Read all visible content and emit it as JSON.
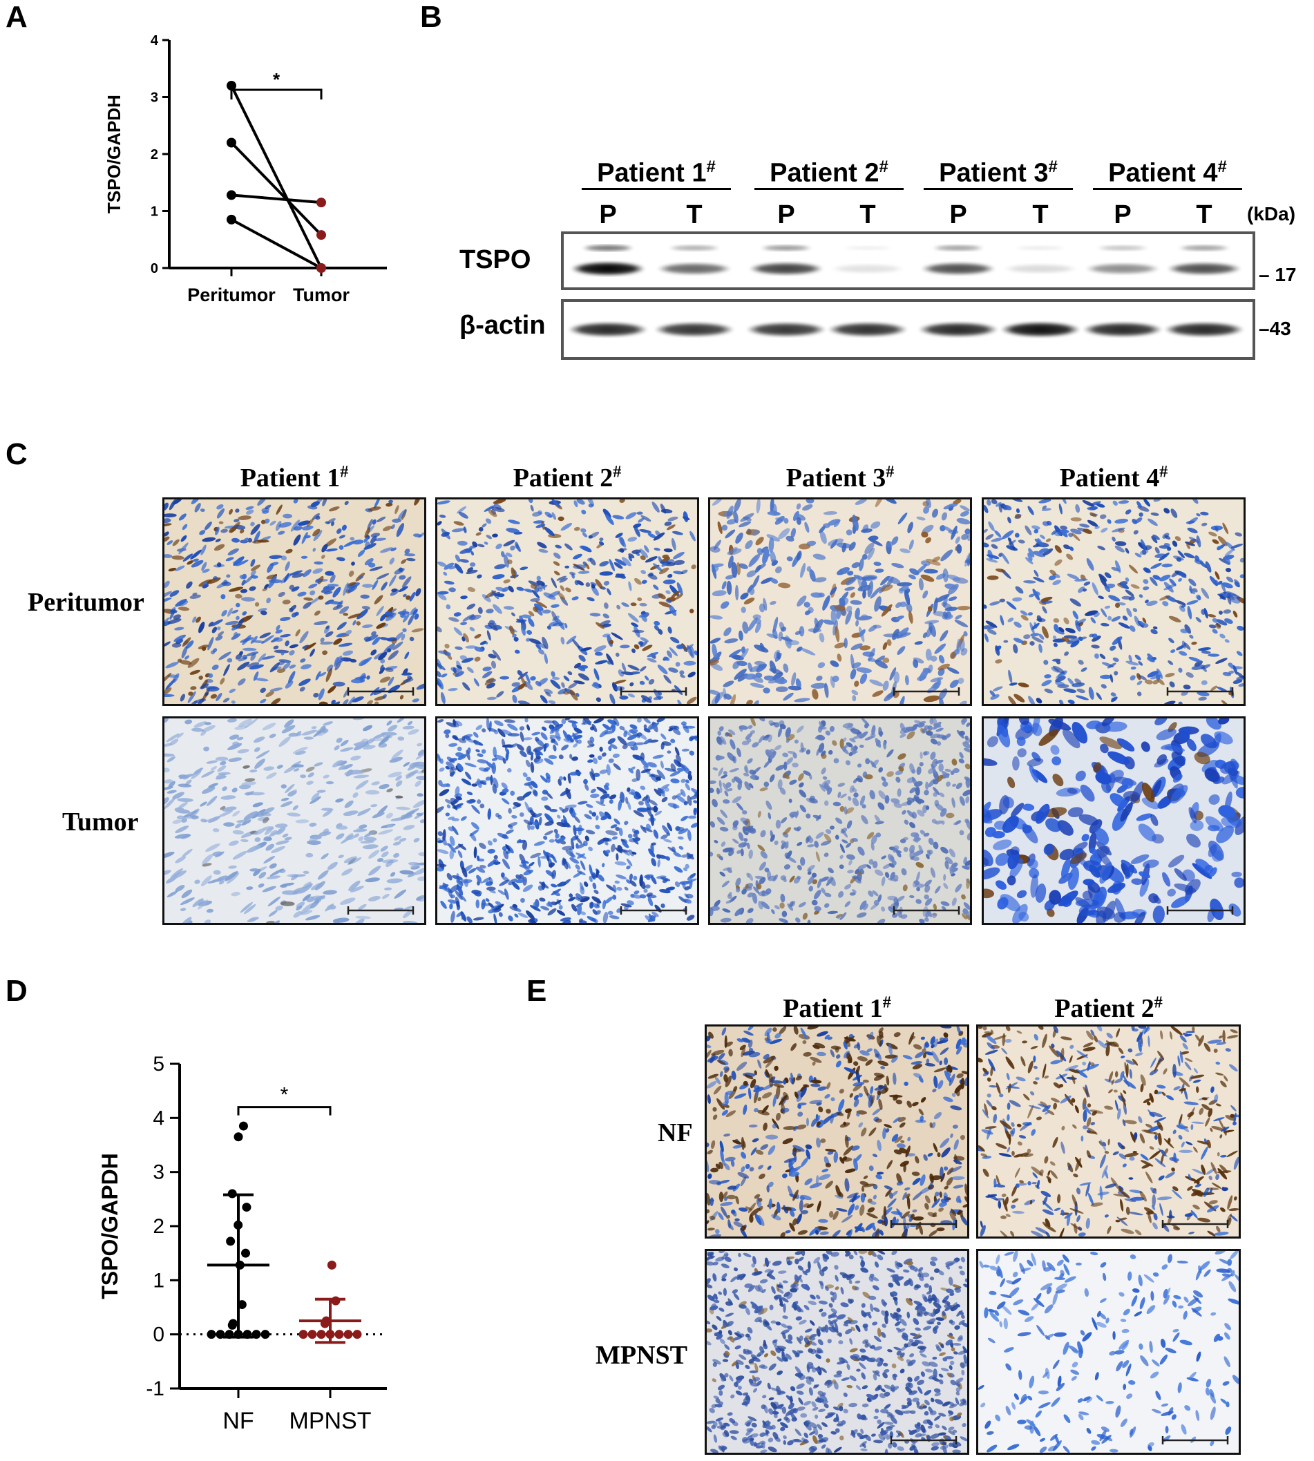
{
  "panels": {
    "A": {
      "letter": "A"
    },
    "B": {
      "letter": "B"
    },
    "C": {
      "letter": "C"
    },
    "D": {
      "letter": "D"
    },
    "E": {
      "letter": "E"
    }
  },
  "chart_data": [
    {
      "panel": "A",
      "type": "scatter",
      "ylabel": "TSPO/GAPDH",
      "xlabel": "",
      "categories": [
        "Peritumor",
        "Tumor"
      ],
      "yticks": [
        0,
        1,
        2,
        3,
        4
      ],
      "ylim": [
        0,
        4
      ],
      "pairs": [
        {
          "peritumor": 3.2,
          "tumor": 0.0
        },
        {
          "peritumor": 2.2,
          "tumor": 0.58
        },
        {
          "peritumor": 1.28,
          "tumor": 1.15
        },
        {
          "peritumor": 0.85,
          "tumor": 0.0
        }
      ],
      "significance": "*",
      "colors": {
        "peritumor": "#000000",
        "tumor": "#8b1a1a"
      }
    },
    {
      "panel": "D",
      "type": "scatter",
      "ylabel": "TSPO/GAPDH",
      "xlabel": "",
      "categories": [
        "NF",
        "MPNST"
      ],
      "yticks": [
        -1,
        0,
        1,
        2,
        3,
        4,
        5
      ],
      "ylim": [
        -1,
        5
      ],
      "significance": "*",
      "reference_line": 0,
      "groups": [
        {
          "name": "NF",
          "color": "#000000",
          "mean": 1.28,
          "sd_low": -0.05,
          "sd_high": 2.58,
          "values": [
            3.85,
            3.65,
            2.6,
            2.35,
            2.02,
            1.72,
            1.5,
            1.28,
            0.55,
            0.2,
            0.17,
            0.0,
            0.0,
            0.0,
            0.0,
            0.0,
            0.0,
            0.0
          ]
        },
        {
          "name": "MPNST",
          "color": "#8b1a1a",
          "mean": 0.25,
          "sd_low": -0.15,
          "sd_high": 0.65,
          "values": [
            1.28,
            0.62,
            0.25,
            0.22,
            0.2,
            0.0,
            0.0,
            0.0,
            0.0,
            0.0,
            0.0,
            0.0
          ]
        }
      ]
    }
  ],
  "blot": {
    "patients": [
      "Patient 1",
      "Patient 2",
      "Patient 3",
      "Patient 4"
    ],
    "sup": "#",
    "lanes": [
      "P",
      "T",
      "P",
      "T",
      "P",
      "T",
      "P",
      "T"
    ],
    "kda_label": "(kDa)",
    "rows": [
      {
        "label": "TSPO",
        "marker": "17",
        "intensity": [
          1.0,
          0.6,
          0.75,
          0.12,
          0.7,
          0.15,
          0.45,
          0.7
        ]
      },
      {
        "label": "β-actin",
        "marker": "43",
        "intensity": [
          0.85,
          0.8,
          0.8,
          0.82,
          0.85,
          0.95,
          0.85,
          0.85
        ]
      }
    ]
  },
  "ihc_c": {
    "columns": [
      "Patient 1",
      "Patient 2",
      "Patient 3",
      "Patient 4"
    ],
    "sup": "#",
    "rows": [
      "Peritumor",
      "Tumor"
    ]
  },
  "ihc_e": {
    "columns": [
      "Patient 1",
      "Patient 2"
    ],
    "sup": "#",
    "rows": [
      "NF",
      "MPNST"
    ]
  }
}
